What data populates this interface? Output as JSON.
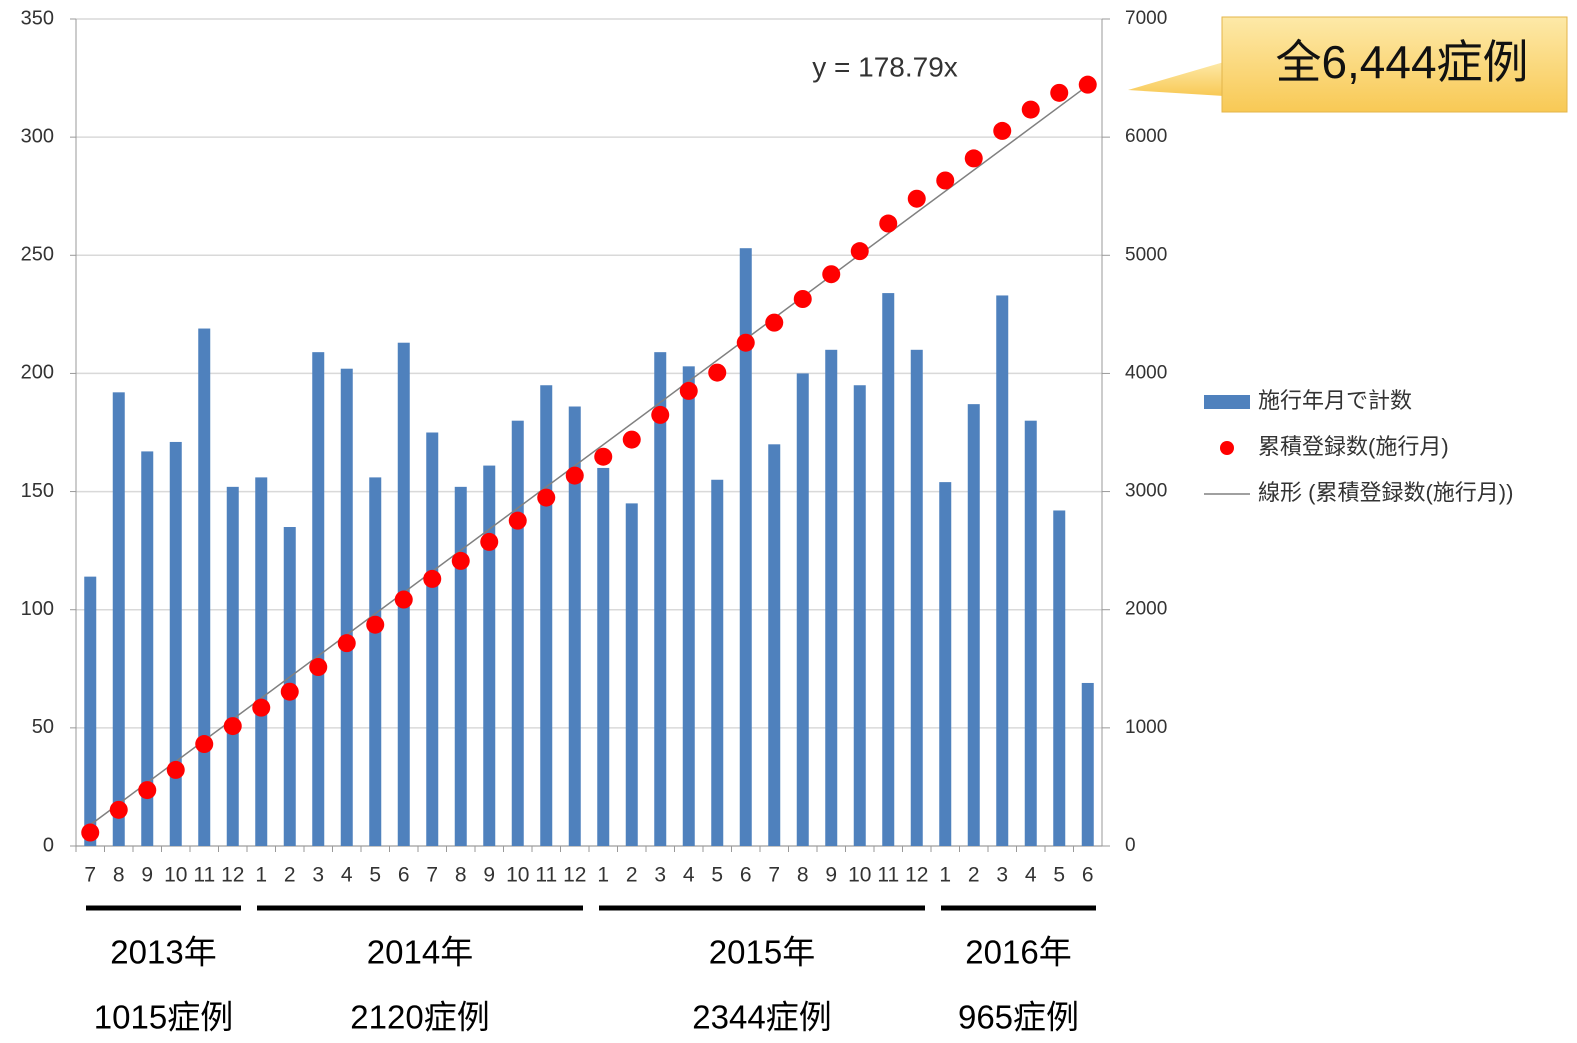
{
  "chart_data": {
    "type": "bar",
    "categories": [
      "7",
      "8",
      "9",
      "10",
      "11",
      "12",
      "1",
      "2",
      "3",
      "4",
      "5",
      "6",
      "7",
      "8",
      "9",
      "10",
      "11",
      "12",
      "1",
      "2",
      "3",
      "4",
      "5",
      "6",
      "7",
      "8",
      "9",
      "10",
      "11",
      "12",
      "1",
      "2",
      "3",
      "4",
      "5",
      "6"
    ],
    "series": [
      {
        "name": "施行年月で計数",
        "type": "bar",
        "color": "#4f81bd",
        "values": [
          114,
          192,
          167,
          171,
          219,
          152,
          156,
          135,
          209,
          202,
          156,
          213,
          175,
          152,
          161,
          180,
          195,
          186,
          160,
          145,
          209,
          203,
          155,
          253,
          170,
          200,
          210,
          195,
          234,
          210,
          154,
          187,
          233,
          180,
          142,
          69
        ]
      },
      {
        "name": "累積登録数(施行月)",
        "type": "scatter",
        "axis": "y2",
        "color": "#ff0000",
        "values": [
          114,
          306,
          473,
          644,
          863,
          1015,
          1171,
          1306,
          1515,
          1717,
          1873,
          2086,
          2261,
          2413,
          2574,
          2754,
          2949,
          3135,
          3295,
          3440,
          3649,
          3852,
          4007,
          4260,
          4430,
          4630,
          4840,
          5035,
          5269,
          5479,
          5633,
          5820,
          6053,
          6233,
          6375,
          6444
        ]
      }
    ],
    "trend": {
      "name": "線形 (累積登録数(施行月))",
      "equation": "y = 178.79x",
      "slope": 178.79,
      "color": "#808080"
    },
    "ylim": [
      0,
      350
    ],
    "yticks": [
      0,
      50,
      100,
      150,
      200,
      250,
      300,
      350
    ],
    "y2lim": [
      0,
      7000
    ],
    "y2ticks": [
      0,
      1000,
      2000,
      3000,
      4000,
      5000,
      6000,
      7000
    ],
    "grid": true,
    "groups": [
      {
        "label": "2013年",
        "cases": "1015症例",
        "months": 6
      },
      {
        "label": "2014年",
        "cases": "2120症例",
        "months": 12
      },
      {
        "label": "2015年",
        "cases": "2344症例",
        "months": 12
      },
      {
        "label": "2016年",
        "cases": "965症例",
        "months": 6
      }
    ],
    "callout": "全6,444症例"
  }
}
